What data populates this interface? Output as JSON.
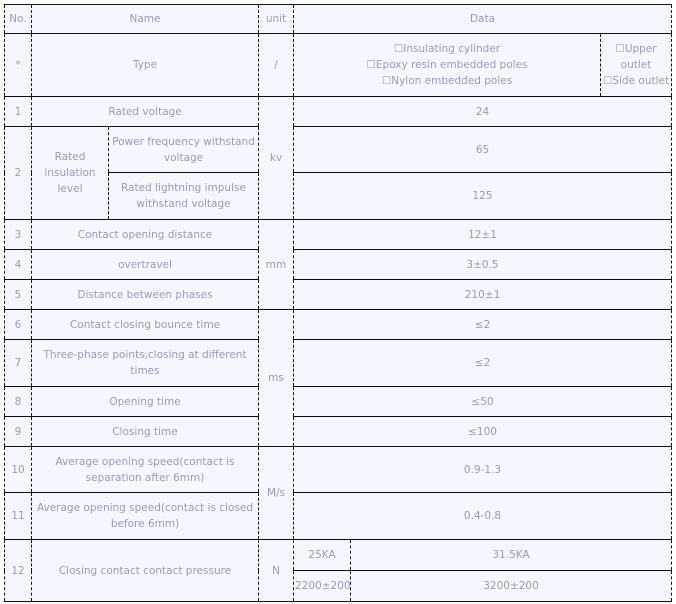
{
  "header": {
    "no": "No.",
    "name": "Name",
    "unit": "unit",
    "data": "Data"
  },
  "type_row": {
    "no": "*",
    "name": "Type",
    "unit": "/",
    "options": [
      "☐Insulating cylinder",
      "☐Epoxy resin embedded poles",
      "☐Nylon embedded poles"
    ],
    "outlet": [
      "☐Upper",
      "outlet",
      "☐Side outlet"
    ]
  },
  "rows": {
    "r1": {
      "no": "1",
      "name": "Rated voltage",
      "value": "24"
    },
    "r2": {
      "no": "2",
      "group": "Rated insulation level",
      "unit": "kv",
      "a": {
        "name": "Power frequency withstand voltage",
        "value": "65"
      },
      "b": {
        "name": "Rated lightning impulse withstand voltage",
        "value": "125"
      }
    },
    "r3": {
      "no": "3",
      "name": "Contact opening distance",
      "value": "12±1"
    },
    "r4": {
      "no": "4",
      "name": "overtravel",
      "value": "3±0.5"
    },
    "r5": {
      "no": "5",
      "name": "Distance between phases",
      "value": "210±1"
    },
    "mm": "mm",
    "r6": {
      "no": "6",
      "name": "Contact closing bounce time",
      "value": "≤2"
    },
    "r7": {
      "no": "7",
      "name": "Three-phase points,closing at different times",
      "value": "≤2"
    },
    "r8": {
      "no": "8",
      "name": "Opening time",
      "value": "≤50"
    },
    "r9": {
      "no": "9",
      "name": "Closing time",
      "value": "≤100"
    },
    "ms": "ms",
    "r10": {
      "no": "10",
      "name": "Average opening speed(contact is separation after 6mm)",
      "value": "0.9-1.3"
    },
    "r11": {
      "no": "11",
      "name": "Average opening speed(contact is closed before 6mm)",
      "value": "0.4-0.8"
    },
    "mps": "M/s",
    "r12": {
      "no": "12",
      "name": "Closing contact contact pressure",
      "unit": "N",
      "h1": "25KA",
      "h2": "31.5KA",
      "v1": "2200±200",
      "v2": "3200±200"
    }
  }
}
